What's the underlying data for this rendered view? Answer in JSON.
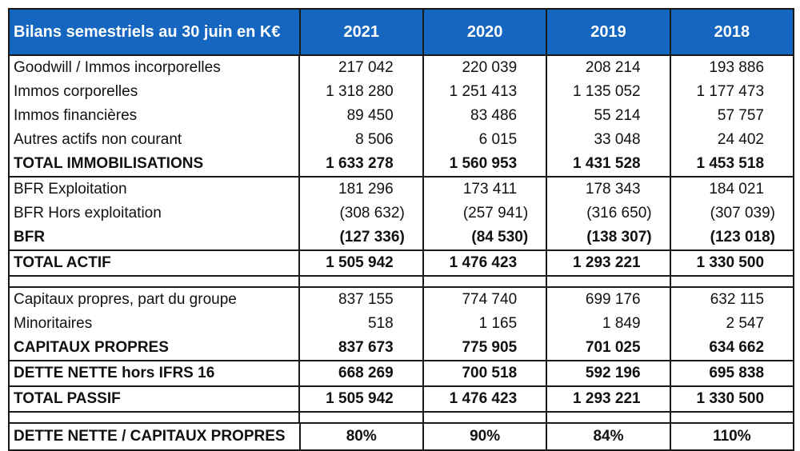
{
  "header": {
    "title": "Bilans semestriels au 30 juin en K€",
    "years": [
      "2021",
      "2020",
      "2019",
      "2018"
    ]
  },
  "groups": [
    {
      "rows": [
        {
          "label": "Goodwill / Immos incorporelles",
          "values": [
            "217 042",
            "220 039",
            "208 214",
            "193 886"
          ]
        },
        {
          "label": "Immos corporelles",
          "values": [
            "1 318 280",
            "1 251 413",
            "1 135 052",
            "1 177 473"
          ]
        },
        {
          "label": "Immos financières",
          "values": [
            "89 450",
            "83 486",
            "55 214",
            "57 757"
          ]
        },
        {
          "label": "Autres actifs non courant",
          "values": [
            "8 506",
            "6 015",
            "33 048",
            "24 402"
          ]
        },
        {
          "label": "TOTAL IMMOBILISATIONS",
          "bold": true,
          "values": [
            "1 633 278",
            "1 560 953",
            "1 431 528",
            "1 453 518"
          ]
        }
      ]
    },
    {
      "rows": [
        {
          "label": "BFR Exploitation",
          "values": [
            "181 296",
            "173 411",
            "178 343",
            "184 021"
          ]
        },
        {
          "label": "BFR Hors exploitation",
          "paren": true,
          "values": [
            "(308 632)",
            "(257 941)",
            "(316 650)",
            "(307 039)"
          ]
        },
        {
          "label": "BFR",
          "bold": true,
          "paren": true,
          "values": [
            "(127 336)",
            "(84 530)",
            "(138 307)",
            "(123 018)"
          ]
        }
      ]
    },
    {
      "rows": [
        {
          "label": "TOTAL ACTIF",
          "bold": true,
          "values": [
            "1 505 942",
            "1 476 423",
            "1 293 221",
            "1 330 500"
          ]
        }
      ]
    },
    {
      "empty": true,
      "rows": []
    },
    {
      "rows": [
        {
          "label": "Capitaux propres, part du groupe",
          "values": [
            "837 155",
            "774 740",
            "699 176",
            "632 115"
          ]
        },
        {
          "label": "Minoritaires",
          "values": [
            "518",
            "1 165",
            "1 849",
            "2 547"
          ]
        },
        {
          "label": "CAPITAUX PROPRES",
          "bold": true,
          "values": [
            "837 673",
            "775 905",
            "701 025",
            "634 662"
          ]
        }
      ]
    },
    {
      "rows": [
        {
          "label": "DETTE NETTE hors IFRS 16",
          "bold": true,
          "values": [
            "668 269",
            "700 518",
            "592 196",
            "695 838"
          ]
        }
      ]
    },
    {
      "rows": [
        {
          "label": "TOTAL PASSIF",
          "bold": true,
          "values": [
            "1 505 942",
            "1 476 423",
            "1 293 221",
            "1 330 500"
          ]
        }
      ]
    },
    {
      "empty": true,
      "rows": []
    },
    {
      "ratio": true,
      "rows": [
        {
          "label": "DETTE  NETTE / CAPITAUX PROPRES",
          "bold": true,
          "values": [
            "80%",
            "90%",
            "84%",
            "110%"
          ]
        }
      ]
    }
  ]
}
